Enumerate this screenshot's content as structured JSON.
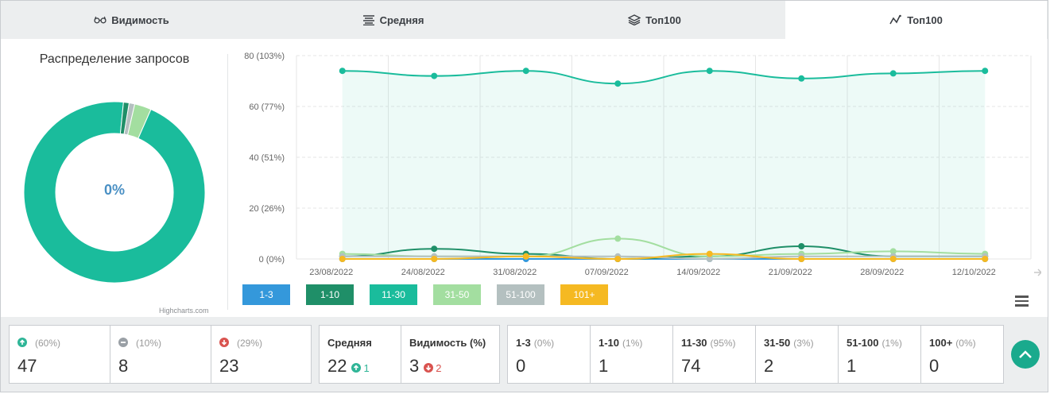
{
  "tabs": [
    {
      "label": "Видимость",
      "icon": "glasses-icon"
    },
    {
      "label": "Средняя",
      "icon": "list-icon"
    },
    {
      "label": "Топ100",
      "icon": "layers-icon"
    },
    {
      "label": "Топ100",
      "icon": "line-chart-icon"
    }
  ],
  "donut": {
    "title": "Распределение запросов",
    "center_value": "0%",
    "credits": "Highcharts.com",
    "slices": [
      {
        "name": "11-30",
        "value": 95,
        "color": "#1abc9c"
      },
      {
        "name": "31-50",
        "value": 3,
        "color": "#a3dea0"
      },
      {
        "name": "51-100",
        "value": 1,
        "color": "#b4c0c0"
      },
      {
        "name": "1-10",
        "value": 1,
        "color": "#1f8f68"
      },
      {
        "name": "1-3",
        "value": 0,
        "color": "#3498db"
      }
    ]
  },
  "chart_data": {
    "type": "line",
    "categories": [
      "23/08/2022",
      "24/08/2022",
      "31/08/2022",
      "07/09/2022",
      "14/09/2022",
      "21/09/2022",
      "28/09/2022",
      "12/10/2022"
    ],
    "y_ticks": [
      "0 (0%)",
      "20 (26%)",
      "40 (51%)",
      "60 (77%)",
      "80 (103%)"
    ],
    "ylim": [
      0,
      80
    ],
    "legend_position": "bottom-left",
    "series": [
      {
        "name": "1-3",
        "color": "#3498db",
        "values": [
          0,
          0,
          0,
          0,
          0,
          0,
          0,
          0
        ]
      },
      {
        "name": "1-10",
        "color": "#1f8f68",
        "values": [
          1,
          4,
          2,
          0,
          1,
          5,
          1,
          1
        ]
      },
      {
        "name": "11-30",
        "color": "#1abc9c",
        "values": [
          74,
          72,
          74,
          69,
          74,
          71,
          73,
          74
        ],
        "area": true
      },
      {
        "name": "31-50",
        "color": "#a3dea0",
        "values": [
          2,
          1,
          1,
          8,
          1,
          2,
          3,
          2
        ]
      },
      {
        "name": "51-100",
        "color": "#b4c0c0",
        "values": [
          1,
          1,
          1,
          1,
          0,
          1,
          1,
          1
        ]
      },
      {
        "name": "101+",
        "color": "#f5b922",
        "values": [
          0,
          0,
          1,
          0,
          2,
          0,
          0,
          0
        ]
      }
    ]
  },
  "stats": {
    "trend": [
      {
        "icon": "arrow-up-circle-icon",
        "pct": "(60%)",
        "value": "47"
      },
      {
        "icon": "minus-circle-icon",
        "pct": "(10%)",
        "value": "8"
      },
      {
        "icon": "arrow-down-circle-icon",
        "pct": "(29%)",
        "value": "23"
      }
    ],
    "avg": {
      "label": "Средняя",
      "value": "22",
      "change": "1"
    },
    "visibility": {
      "label": "Видимость (%)",
      "value": "3",
      "change": "2"
    },
    "buckets": [
      {
        "label": "1-3",
        "pct": "(0%)",
        "value": "0"
      },
      {
        "label": "1-10",
        "pct": "(1%)",
        "value": "1"
      },
      {
        "label": "11-30",
        "pct": "(95%)",
        "value": "74"
      },
      {
        "label": "31-50",
        "pct": "(3%)",
        "value": "2"
      },
      {
        "label": "51-100",
        "pct": "(1%)",
        "value": "1"
      },
      {
        "label": "100+",
        "pct": "(0%)",
        "value": "0"
      }
    ]
  }
}
